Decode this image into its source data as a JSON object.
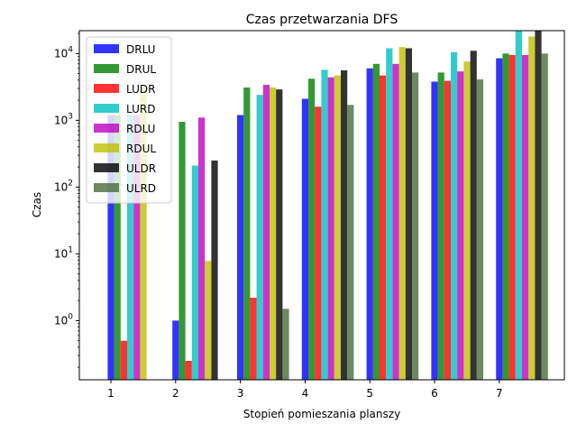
{
  "chart_data": {
    "type": "bar",
    "title": "Czas przetwarzania DFS",
    "xlabel": "Stopień pomieszania planszy",
    "ylabel": "Czas",
    "yscale": "log",
    "ylim": [
      0.13,
      22000
    ],
    "categories": [
      "1",
      "2",
      "3",
      "4",
      "5",
      "6",
      "7"
    ],
    "y_ticks": [
      {
        "value": 1,
        "base": "10",
        "exp": "0"
      },
      {
        "value": 10,
        "base": "10",
        "exp": "1"
      },
      {
        "value": 100,
        "base": "10",
        "exp": "2"
      },
      {
        "value": 1000,
        "base": "10",
        "exp": "3"
      },
      {
        "value": 10000,
        "base": "10",
        "exp": "4"
      }
    ],
    "legend_position": "top-left",
    "grid": false,
    "series": [
      {
        "name": "DRLU",
        "color": "#0000ff",
        "values": [
          1200,
          1.0,
          1200,
          2100,
          6000,
          3800,
          8500
        ]
      },
      {
        "name": "DRUL",
        "color": "#008000",
        "values": [
          1200,
          950,
          3100,
          4200,
          7000,
          5200,
          10000
        ]
      },
      {
        "name": "LUDR",
        "color": "#ff0000",
        "values": [
          0.5,
          0.25,
          2.2,
          1600,
          4700,
          3900,
          9500
        ]
      },
      {
        "name": "LURD",
        "color": "#00bfbf",
        "values": [
          1200,
          210,
          2400,
          5700,
          12000,
          10500,
          22000
        ]
      },
      {
        "name": "RDLU",
        "color": "#bf00bf",
        "values": [
          1200,
          1100,
          3400,
          4400,
          7000,
          5400,
          9500
        ]
      },
      {
        "name": "RDUL",
        "color": "#bfbf00",
        "values": [
          3100,
          7.8,
          3100,
          4700,
          12500,
          7600,
          18000
        ]
      },
      {
        "name": "ULDR",
        "color": "#000000",
        "values": [
          null,
          250,
          2900,
          5600,
          12000,
          11000,
          22000
        ]
      },
      {
        "name": "ULRD",
        "color": "#4b6b3b",
        "values": [
          null,
          null,
          1.5,
          1700,
          5200,
          4100,
          10000
        ]
      }
    ]
  }
}
